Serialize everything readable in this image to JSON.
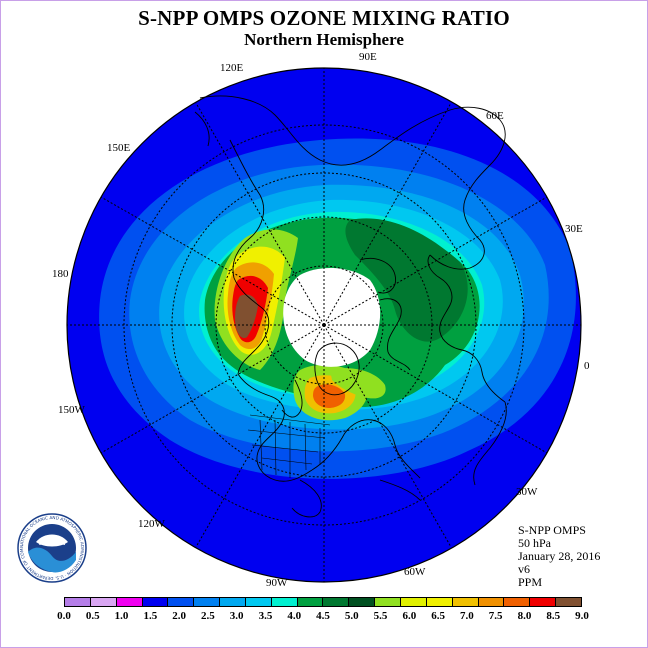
{
  "header": {
    "title": "S-NPP OMPS OZONE MIXING RATIO",
    "subtitle": "Northern Hemisphere"
  },
  "map": {
    "projection": "polar stereographic",
    "longitude_labels": [
      "90E",
      "60E",
      "30E",
      "0",
      "30W",
      "60W",
      "90W",
      "120W",
      "150W",
      "180",
      "150E",
      "120E"
    ]
  },
  "info": {
    "instrument": "S-NPP OMPS",
    "level": "50 hPa",
    "date": "January 28, 2016",
    "version": "v6",
    "units": "PPM"
  },
  "legend": {
    "ticks": [
      "0.0",
      "0.5",
      "1.0",
      "1.5",
      "2.0",
      "2.5",
      "3.0",
      "3.5",
      "4.0",
      "4.5",
      "5.0",
      "5.5",
      "6.0",
      "6.5",
      "7.0",
      "7.5",
      "8.0",
      "8.5",
      "9.0"
    ],
    "colors": [
      "#b57ee8",
      "#d9a6f2",
      "#f000f0",
      "#0000f0",
      "#0050f0",
      "#0080f0",
      "#00a8f0",
      "#00c8f0",
      "#00f0d0",
      "#00a040",
      "#007830",
      "#005020",
      "#90e020",
      "#e0f000",
      "#f0f000",
      "#f0c000",
      "#f09000",
      "#f06000",
      "#f00000",
      "#805030"
    ]
  },
  "logo": {
    "text": "NOAA",
    "ring_text": "NATIONAL OCEANIC AND ATMOSPHERIC ADMINISTRATION · U.S. DEPARTMENT OF COMMERCE"
  }
}
